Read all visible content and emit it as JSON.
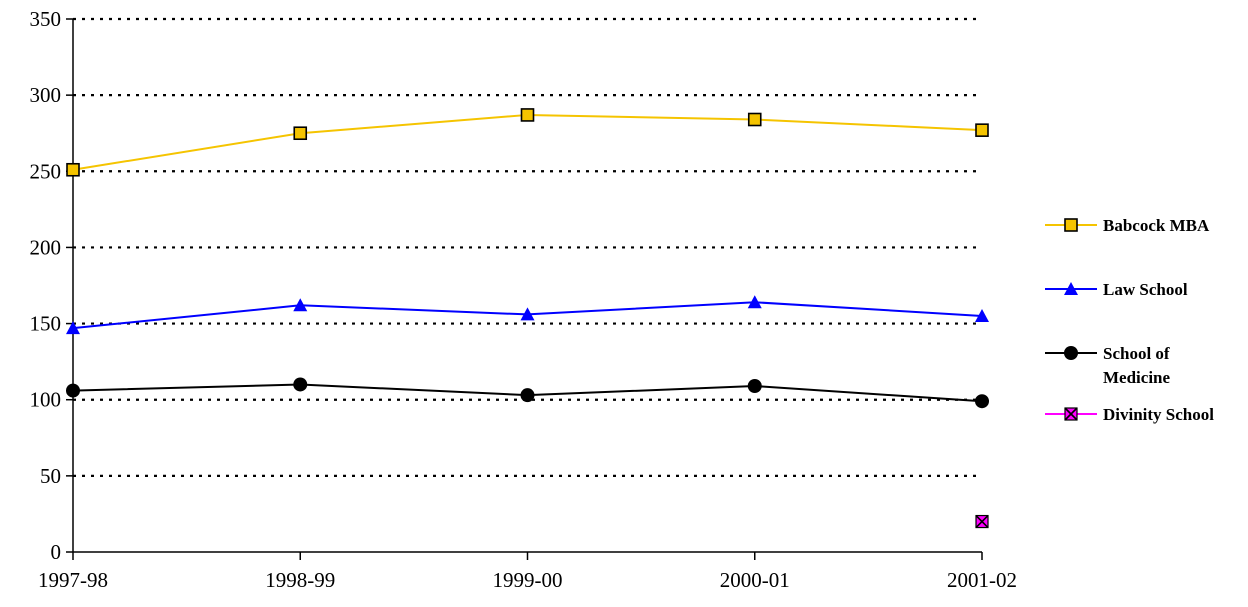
{
  "chart_data": {
    "type": "line",
    "title": "",
    "xlabel": "",
    "ylabel": "",
    "categories": [
      "1997-98",
      "1998-99",
      "1999-00",
      "2000-01",
      "2001-02"
    ],
    "ylim": [
      0,
      350
    ],
    "yticks": [
      0,
      50,
      100,
      150,
      200,
      250,
      300,
      350
    ],
    "grid": "horizontal-dotted",
    "legend_position": "right",
    "series": [
      {
        "name": "Babcock MBA",
        "values": [
          251,
          275,
          287,
          284,
          277
        ],
        "color": "#F5C400",
        "marker": "square",
        "marker_fill": "#F5C400"
      },
      {
        "name": "Law School",
        "values": [
          147,
          162,
          156,
          164,
          155
        ],
        "color": "#0000FF",
        "marker": "triangle",
        "marker_fill": "#0000FF"
      },
      {
        "name": "School of Medicine",
        "legend_lines": [
          "School of",
          "Medicine"
        ],
        "values": [
          106,
          110,
          103,
          109,
          99
        ],
        "color": "#000000",
        "marker": "circle",
        "marker_fill": "#000000"
      },
      {
        "name": "Divinity School",
        "values": [
          null,
          null,
          null,
          null,
          20
        ],
        "color": "#FF00FF",
        "marker": "x-square",
        "marker_fill": "#FF00FF"
      }
    ]
  }
}
